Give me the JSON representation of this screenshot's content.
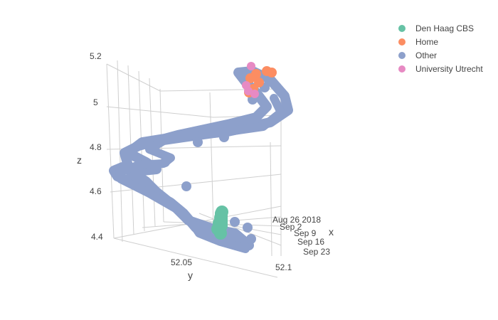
{
  "chart_data": {
    "type": "scatter3d",
    "title": "",
    "axes": {
      "x": {
        "title": "x",
        "ticks": [
          "Aug 26 2018",
          "Sep 2",
          "Sep 9",
          "Sep 16",
          "Sep 23"
        ],
        "range": [
          "2018-08-26",
          "2018-09-23"
        ]
      },
      "y": {
        "title": "y",
        "ticks": [
          "52.05",
          "52.1"
        ],
        "range": [
          52.02,
          52.1
        ]
      },
      "z": {
        "title": "z",
        "ticks": [
          "4.4",
          "4.6",
          "4.8",
          "5",
          "5.2"
        ],
        "range": [
          4.35,
          5.2
        ]
      }
    },
    "legend": {
      "placement": "top-right",
      "entries": [
        {
          "name": "Den Haag CBS",
          "color": "#66c2a5"
        },
        {
          "name": "Home",
          "color": "#fc8d62"
        },
        {
          "name": "Other",
          "color": "#8da0cb"
        },
        {
          "name": "University Utrecht",
          "color": "#e78ac3"
        }
      ]
    },
    "grid": true,
    "series": [
      {
        "name": "Other",
        "color": "#8da0cb",
        "marker_shape": "trajectory"
      },
      {
        "name": "Den Haag CBS",
        "color": "#66c2a5",
        "marker_shape": "cluster"
      },
      {
        "name": "Home",
        "color": "#fc8d62",
        "marker_shape": "cluster"
      },
      {
        "name": "University Utrecht",
        "color": "#e78ac3",
        "marker_shape": "cluster"
      }
    ]
  }
}
